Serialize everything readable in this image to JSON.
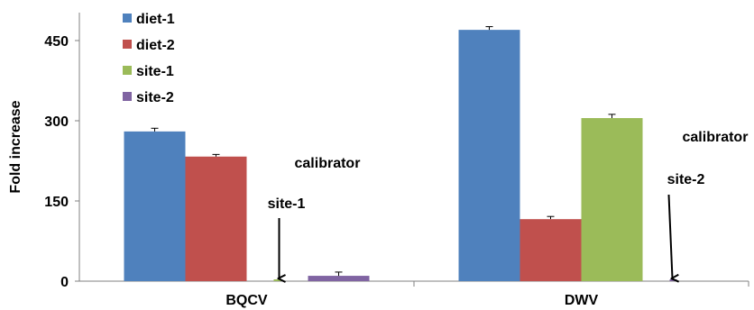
{
  "chart_data": {
    "type": "bar",
    "categories": [
      "BQCV",
      "DWV"
    ],
    "ylabel": "Fold increase",
    "xlabel": "",
    "ylim": [
      0,
      530
    ],
    "yticks": [
      0,
      150,
      300,
      450
    ],
    "grid": false,
    "legend_position": "top-left",
    "series": [
      {
        "name": "diet-1",
        "color": "#4F81BD",
        "values": [
          280,
          470
        ],
        "errors": [
          6,
          6
        ]
      },
      {
        "name": "diet-2",
        "color": "#C0504D",
        "values": [
          233,
          116
        ],
        "errors": [
          4,
          5
        ]
      },
      {
        "name": "site-1",
        "color": "#9BBB59",
        "values": [
          0,
          305
        ],
        "errors": [
          0,
          7
        ]
      },
      {
        "name": "site-2",
        "color": "#8064A2",
        "values": [
          10,
          0
        ],
        "errors": [
          7,
          0
        ]
      }
    ],
    "annotations": [
      {
        "text": "calibrator",
        "category": "BQCV"
      },
      {
        "text": "site-1",
        "category": "BQCV",
        "arrow": true
      },
      {
        "text": "calibrator",
        "category": "DWV"
      },
      {
        "text": "site-2",
        "category": "DWV",
        "arrow": true
      }
    ]
  }
}
